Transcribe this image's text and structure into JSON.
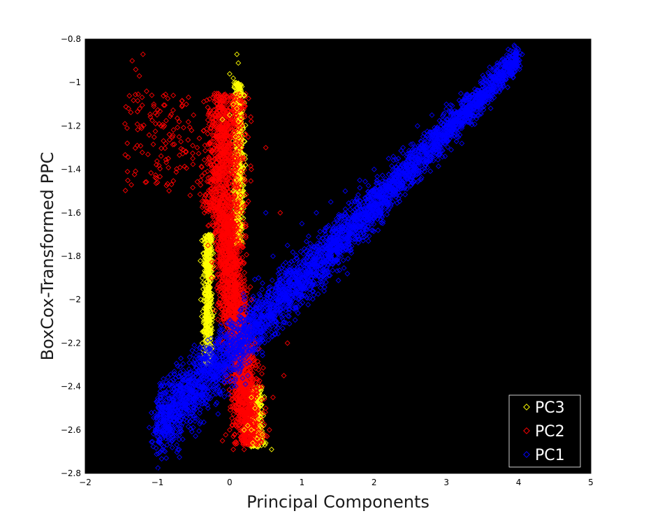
{
  "chart_data": {
    "type": "scatter",
    "title": "",
    "xlabel": "Principal Components",
    "ylabel": "BoxCox-Transformed PPC",
    "xlim": [
      -2,
      5
    ],
    "ylim": [
      -2.8,
      -0.8
    ],
    "xticks": [
      -2,
      -1,
      0,
      1,
      2,
      3,
      4,
      5
    ],
    "yticks": [
      -2.8,
      -2.6,
      -2.4,
      -2.2,
      -2,
      -1.8,
      -1.6,
      -1.4,
      -1.2,
      -1,
      -0.8
    ],
    "xtick_labels": [
      "−2",
      "−1",
      "0",
      "1",
      "2",
      "3",
      "4",
      "5"
    ],
    "ytick_labels": [
      "−2.8",
      "−2.6",
      "−2.4",
      "−2.2",
      "−2",
      "−1.8",
      "−1.6",
      "−1.4",
      "−1.2",
      "−1",
      "−0.8"
    ],
    "background": "#000000",
    "grid": false,
    "marker": "diamond-open",
    "legend_position": "bottom-right",
    "series": [
      {
        "name": "PC3",
        "color": "#ffff00",
        "approx_distribution": "vertical band near x≈0 (upper, y -0.9 to -1.7), band x -0.4..-0.1 (y -1.7..-2.3), cluster x 0.2..0.6 (y -2.4..-2.7)",
        "points": [
          [
            0.1,
            -0.87
          ],
          [
            0.12,
            -0.91
          ],
          [
            0.0,
            -0.96
          ],
          [
            0.05,
            -0.98
          ],
          [
            0.08,
            -1.05
          ],
          [
            0.15,
            -1.06
          ],
          [
            0.2,
            -1.06
          ],
          [
            0.05,
            -1.1
          ],
          [
            0.1,
            -1.12
          ],
          [
            0.0,
            -1.15
          ],
          [
            0.12,
            -1.18
          ],
          [
            0.18,
            -1.2
          ],
          [
            -0.1,
            -1.17
          ],
          [
            0.08,
            -1.25
          ],
          [
            0.2,
            -1.27
          ],
          [
            0.15,
            -1.32
          ],
          [
            0.22,
            -1.38
          ],
          [
            0.1,
            -1.45
          ],
          [
            0.05,
            -1.5
          ],
          [
            0.18,
            -1.55
          ],
          [
            0.12,
            -1.62
          ],
          [
            -0.35,
            -1.8
          ],
          [
            -0.3,
            -1.85
          ],
          [
            -0.38,
            -1.9
          ],
          [
            -0.28,
            -1.95
          ],
          [
            -0.4,
            -2.0
          ],
          [
            -0.32,
            -2.05
          ],
          [
            -0.36,
            -2.1
          ],
          [
            -0.3,
            -2.15
          ],
          [
            -0.38,
            -2.2
          ],
          [
            0.3,
            -2.45
          ],
          [
            0.35,
            -2.5
          ],
          [
            0.4,
            -2.55
          ],
          [
            0.25,
            -2.58
          ],
          [
            0.3,
            -2.6
          ],
          [
            0.45,
            -2.62
          ],
          [
            0.38,
            -2.64
          ],
          [
            0.32,
            -2.66
          ],
          [
            0.5,
            -2.66
          ],
          [
            0.58,
            -2.69
          ],
          [
            0.2,
            -2.6
          ],
          [
            0.42,
            -2.58
          ]
        ]
      },
      {
        "name": "PC2",
        "color": "#ff0000",
        "approx_distribution": "dense vertical band x -0.5..0.6, y -1.0..-2.7, with sparse outliers to x -1.45 near y -1.2",
        "points": [
          [
            -1.2,
            -0.87
          ],
          [
            -1.35,
            -0.9
          ],
          [
            -1.3,
            -0.94
          ],
          [
            -1.25,
            -0.97
          ],
          [
            -1.15,
            -1.04
          ],
          [
            -1.45,
            -1.19
          ],
          [
            -1.42,
            -1.21
          ],
          [
            -1.28,
            -1.29
          ],
          [
            -1.0,
            -1.46
          ],
          [
            -1.05,
            -1.1
          ],
          [
            -0.95,
            -1.2
          ],
          [
            -0.85,
            -1.35
          ],
          [
            -0.7,
            -1.25
          ],
          [
            -0.6,
            -1.1
          ],
          [
            -0.5,
            -1.15
          ],
          [
            -0.45,
            -1.3
          ],
          [
            -0.4,
            -1.45
          ],
          [
            -0.35,
            -1.6
          ],
          [
            -0.3,
            -1.75
          ],
          [
            -0.25,
            -1.9
          ],
          [
            -0.2,
            -2.05
          ],
          [
            -0.15,
            -1.5
          ],
          [
            -0.1,
            -1.6
          ],
          [
            0.0,
            -1.7
          ],
          [
            0.1,
            -1.8
          ],
          [
            0.2,
            -1.9
          ],
          [
            0.3,
            -2.0
          ],
          [
            0.35,
            -2.2
          ],
          [
            0.4,
            -2.3
          ],
          [
            0.45,
            -2.4
          ],
          [
            0.5,
            -2.5
          ],
          [
            0.55,
            -2.6
          ],
          [
            0.6,
            -2.45
          ],
          [
            0.75,
            -2.35
          ],
          [
            0.8,
            -2.2
          ],
          [
            0.7,
            -1.6
          ],
          [
            0.5,
            -1.3
          ],
          [
            0.3,
            -1.4
          ],
          [
            0.0,
            -2.6
          ],
          [
            -0.1,
            -2.65
          ],
          [
            0.05,
            -2.69
          ],
          [
            0.2,
            -2.69
          ]
        ]
      },
      {
        "name": "PC1",
        "color": "#0000ff",
        "approx_distribution": "dense diagonal band from (-1, -2.6) to (4.05, -0.87), roughly linear",
        "points": [
          [
            -1.0,
            -2.6
          ],
          [
            -0.9,
            -2.62
          ],
          [
            -0.7,
            -2.69
          ],
          [
            -0.8,
            -2.5
          ],
          [
            -0.6,
            -2.4
          ],
          [
            -0.4,
            -2.3
          ],
          [
            -0.2,
            -2.2
          ],
          [
            0.0,
            -2.1
          ],
          [
            0.2,
            -2.0
          ],
          [
            0.4,
            -1.9
          ],
          [
            0.6,
            -1.8
          ],
          [
            0.8,
            -1.75
          ],
          [
            1.0,
            -1.65
          ],
          [
            1.2,
            -1.6
          ],
          [
            1.4,
            -1.55
          ],
          [
            1.6,
            -1.5
          ],
          [
            1.8,
            -1.45
          ],
          [
            2.0,
            -1.4
          ],
          [
            2.2,
            -1.35
          ],
          [
            2.4,
            -1.3
          ],
          [
            2.6,
            -1.2
          ],
          [
            2.8,
            -1.15
          ],
          [
            3.0,
            -1.1
          ],
          [
            3.2,
            -1.05
          ],
          [
            3.3,
            -1.06
          ],
          [
            3.5,
            -1.0
          ],
          [
            3.7,
            -0.97
          ],
          [
            3.9,
            -0.92
          ],
          [
            4.05,
            -0.87
          ],
          [
            1.5,
            -1.7
          ],
          [
            0.5,
            -1.6
          ],
          [
            2.5,
            -1.45
          ],
          [
            -0.3,
            -2.5
          ]
        ]
      }
    ]
  }
}
